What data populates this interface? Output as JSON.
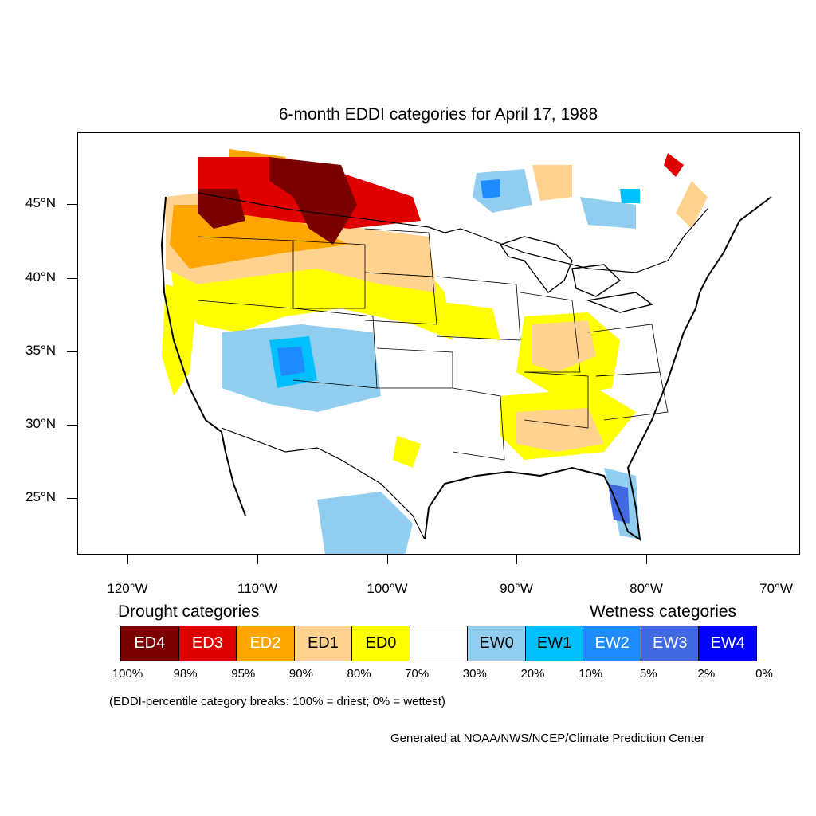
{
  "title": "6-month EDDI categories for April 17, 1988",
  "y_axis_labels": [
    "45°N",
    "40°N",
    "35°N",
    "30°N",
    "25°N"
  ],
  "x_axis_labels": [
    "120°W",
    "110°W",
    "100°W",
    "90°W",
    "80°W",
    "70°W"
  ],
  "legend": {
    "drought_heading": "Drought categories",
    "wetness_heading": "Wetness categories",
    "categories": [
      {
        "label": "ED4",
        "color": "#7b0000",
        "text_color": "#ffffff"
      },
      {
        "label": "ED3",
        "color": "#e00000",
        "text_color": "#ffffff"
      },
      {
        "label": "ED2",
        "color": "#ffa500",
        "text_color": "#ffffff"
      },
      {
        "label": "ED1",
        "color": "#ffd28f",
        "text_color": "#000000"
      },
      {
        "label": "ED0",
        "color": "#ffff00",
        "text_color": "#000000"
      },
      {
        "label": "",
        "color": "#ffffff",
        "text_color": "#000000"
      },
      {
        "label": "EW0",
        "color": "#91cdee",
        "text_color": "#000000"
      },
      {
        "label": "EW1",
        "color": "#00bfff",
        "text_color": "#000000"
      },
      {
        "label": "EW2",
        "color": "#1e8cff",
        "text_color": "#ffffff"
      },
      {
        "label": "EW3",
        "color": "#4169e1",
        "text_color": "#ffffff"
      },
      {
        "label": "EW4",
        "color": "#0000ff",
        "text_color": "#ffffff"
      }
    ],
    "breaks": [
      "100%",
      "98%",
      "95%",
      "90%",
      "80%",
      "70%",
      "30%",
      "20%",
      "10%",
      "5%",
      "2%",
      "0%"
    ]
  },
  "footnote": "(EDDI-percentile category breaks: 100% = driest; 0% = wettest)",
  "credit": "Generated at NOAA/NWS/NCEP/Climate Prediction Center"
}
